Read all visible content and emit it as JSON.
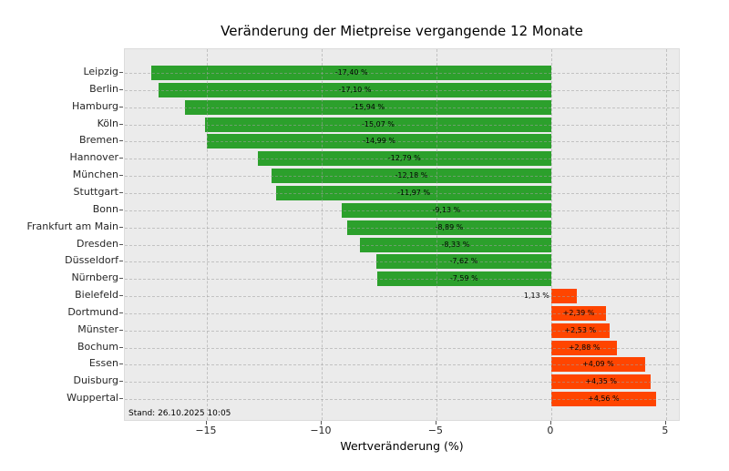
{
  "chart_data": {
    "type": "bar",
    "orientation": "horizontal",
    "title": "Veränderung der Mietpreise vergangende 12 Monate",
    "xlabel": "Wertveränderung (%)",
    "note": "Stand: 26.10.2025 10:05",
    "categories": [
      "Leipzig",
      "Berlin",
      "Hamburg",
      "Köln",
      "Bremen",
      "Hannover",
      "München",
      "Stuttgart",
      "Bonn",
      "Frankfurt am Main",
      "Dresden",
      "Düsseldorf",
      "Nürnberg",
      "Bielefeld",
      "Dortmund",
      "Münster",
      "Bochum",
      "Essen",
      "Duisburg",
      "Wuppertal"
    ],
    "values": [
      -17.4,
      -17.1,
      -15.94,
      -15.07,
      -14.99,
      -12.79,
      -12.18,
      -11.97,
      -9.13,
      -8.89,
      -8.33,
      -7.62,
      -7.59,
      1.13,
      2.39,
      2.53,
      2.88,
      4.09,
      4.35,
      4.56
    ],
    "bar_labels": [
      "-17,40 %",
      "-17,10 %",
      "-15,94 %",
      "-15,07 %",
      "-14,99 %",
      "-12,79 %",
      "-12,18 %",
      "-11,97 %",
      "-9,13 %",
      "-8,89 %",
      "-8,33 %",
      "-7,62 %",
      "-7,59 %",
      "1,13 %",
      "+2,39 %",
      "+2,53 %",
      "+2,88 %",
      "+4,09 %",
      "+4,35 %",
      "+4,56 %"
    ],
    "xticks": [
      -15,
      -10,
      -5,
      0,
      5
    ],
    "xtick_labels": [
      "−15",
      "−10",
      "−5",
      "0",
      "5"
    ],
    "xlim": [
      -18.57,
      5.64
    ],
    "grid": true,
    "legend": null,
    "colors": {
      "negative_bar": "#2ca02c",
      "positive_bar": "#ff4500",
      "plot_background": "#ebebeb",
      "grid_line": "#a0a0a0",
      "text": "#000000",
      "tick_text": "#262626",
      "figure_background": "#ffffff"
    }
  }
}
